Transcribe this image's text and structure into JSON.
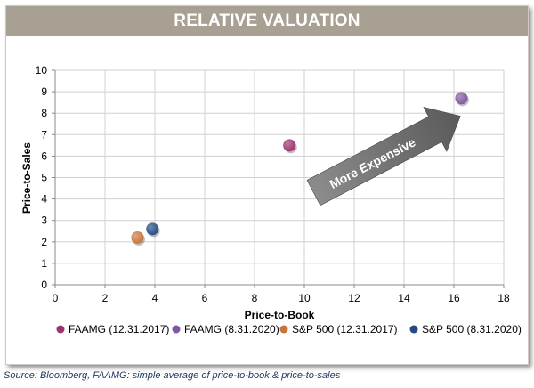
{
  "banner": {
    "title": "RELATIVE VALUATION"
  },
  "source_note": "Source: Bloomberg, FAAMG: simple average of price-to-book & price-to-sales",
  "chart_data": {
    "type": "scatter",
    "xlabel": "Price-to-Book",
    "ylabel": "Price-to-Sales",
    "xlim": [
      0,
      18
    ],
    "ylim": [
      0,
      10
    ],
    "x_ticks": [
      0,
      2,
      4,
      6,
      8,
      10,
      12,
      14,
      16,
      18
    ],
    "y_ticks": [
      0,
      1,
      2,
      3,
      4,
      5,
      6,
      7,
      8,
      9,
      10
    ],
    "grid": true,
    "legend_position": "bottom",
    "series": [
      {
        "name": "FAAMG (12.31.2017)",
        "color": "#a0306e",
        "points": [
          {
            "x": 9.4,
            "y": 6.5
          }
        ]
      },
      {
        "name": "FAAMG (8.31.2020)",
        "color": "#7e57a0",
        "points": [
          {
            "x": 16.3,
            "y": 8.7
          }
        ]
      },
      {
        "name": "S&P 500 (12.31.2017)",
        "color": "#c9743b",
        "points": [
          {
            "x": 3.3,
            "y": 2.2
          }
        ]
      },
      {
        "name": "S&P 500 (8.31.2020)",
        "color": "#244a85",
        "points": [
          {
            "x": 3.9,
            "y": 2.6
          }
        ]
      }
    ],
    "annotations": [
      {
        "text": "More Expensive",
        "shape": "arrow",
        "direction": "up-right"
      }
    ]
  }
}
